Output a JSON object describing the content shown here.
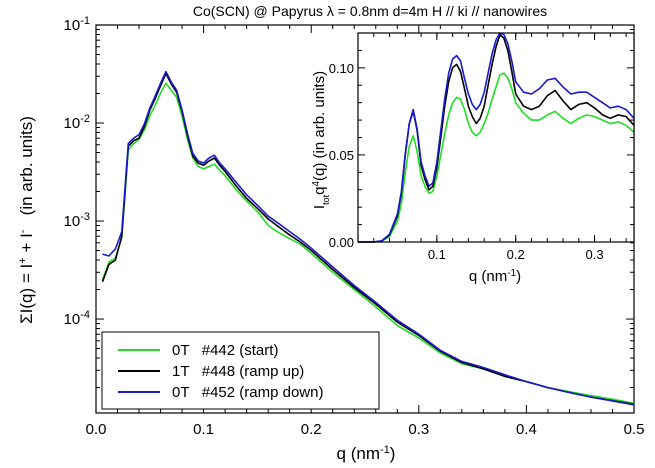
{
  "chart_data": [
    {
      "type": "line",
      "title": "Co(SCN) @ Papyrus λ = 0.8nm d=4m  H // ki // nanowires",
      "xlabel": "q (nm⁻¹)",
      "ylabel": "ΣI(q) = I⁺ + I⁻   (in arb. units)",
      "xlim": [
        0.0,
        0.5
      ],
      "ylim": [
        1.1e-05,
        0.1
      ],
      "yscale": "log",
      "grid": false,
      "legend_position": "bottom-left",
      "x_ticks": [
        "0.0",
        "0.1",
        "0.2",
        "0.3",
        "0.4",
        "0.5"
      ],
      "y_ticks": [
        {
          "base": "10",
          "exp": "-4"
        },
        {
          "base": "10",
          "exp": "-3"
        },
        {
          "base": "10",
          "exp": "-2"
        },
        {
          "base": "10",
          "exp": "-1"
        }
      ],
      "series": [
        {
          "name": "0T   #442 (start)",
          "color": "#22dd22",
          "x": [
            0.006,
            0.012,
            0.018,
            0.024,
            0.03,
            0.035,
            0.04,
            0.045,
            0.05,
            0.055,
            0.06,
            0.065,
            0.07,
            0.075,
            0.08,
            0.085,
            0.09,
            0.095,
            0.1,
            0.105,
            0.11,
            0.115,
            0.12,
            0.13,
            0.14,
            0.15,
            0.16,
            0.17,
            0.18,
            0.19,
            0.2,
            0.22,
            0.24,
            0.26,
            0.28,
            0.3,
            0.32,
            0.34,
            0.36,
            0.38,
            0.4,
            0.42,
            0.44,
            0.46,
            0.48,
            0.5
          ],
          "y": [
            0.00025,
            0.00038,
            0.00042,
            0.00068,
            0.0053,
            0.0062,
            0.0068,
            0.0085,
            0.0118,
            0.0152,
            0.0203,
            0.0255,
            0.0215,
            0.0182,
            0.0117,
            0.0068,
            0.0044,
            0.0036,
            0.0034,
            0.0036,
            0.0038,
            0.0033,
            0.0029,
            0.0021,
            0.0016,
            0.00125,
            0.0009,
            0.00076,
            0.00066,
            0.00058,
            0.00047,
            0.0003,
            0.0002,
            0.000133,
            8.6e-05,
            6.4e-05,
            4.5e-05,
            3.5e-05,
            3.1e-05,
            2.6e-05,
            2.3e-05,
            2e-05,
            1.82e-05,
            1.65e-05,
            1.52e-05,
            1.38e-05
          ]
        },
        {
          "name": "1T   #448 (ramp up)",
          "color": "#000000",
          "x": [
            0.006,
            0.012,
            0.018,
            0.024,
            0.03,
            0.035,
            0.04,
            0.045,
            0.05,
            0.055,
            0.06,
            0.065,
            0.07,
            0.075,
            0.08,
            0.085,
            0.09,
            0.095,
            0.1,
            0.105,
            0.11,
            0.115,
            0.12,
            0.13,
            0.14,
            0.15,
            0.16,
            0.17,
            0.18,
            0.19,
            0.2,
            0.22,
            0.24,
            0.26,
            0.28,
            0.3,
            0.32,
            0.34,
            0.36,
            0.38,
            0.4,
            0.42,
            0.44,
            0.46,
            0.48,
            0.5
          ],
          "y": [
            0.00024,
            0.00036,
            0.0004,
            0.0007,
            0.0058,
            0.0066,
            0.007,
            0.0092,
            0.0135,
            0.0178,
            0.024,
            0.032,
            0.025,
            0.0205,
            0.013,
            0.0074,
            0.0046,
            0.0039,
            0.0037,
            0.0041,
            0.0044,
            0.0037,
            0.0032,
            0.0023,
            0.0017,
            0.00135,
            0.00105,
            0.00087,
            0.00072,
            0.00061,
            0.0005,
            0.00032,
            0.00021,
            0.000142,
            9.3e-05,
            6.8e-05,
            4.7e-05,
            3.6e-05,
            3.1e-05,
            2.6e-05,
            2.3e-05,
            2e-05,
            1.78e-05,
            1.6e-05,
            1.47e-05,
            1.35e-05
          ]
        },
        {
          "name": "0T   #452 (ramp down)",
          "color": "#1a1acc",
          "x": [
            0.006,
            0.012,
            0.018,
            0.024,
            0.03,
            0.035,
            0.04,
            0.045,
            0.05,
            0.055,
            0.06,
            0.065,
            0.07,
            0.075,
            0.08,
            0.085,
            0.09,
            0.095,
            0.1,
            0.105,
            0.11,
            0.115,
            0.12,
            0.13,
            0.14,
            0.15,
            0.16,
            0.17,
            0.18,
            0.19,
            0.2,
            0.22,
            0.24,
            0.26,
            0.28,
            0.3,
            0.32,
            0.34,
            0.36,
            0.38,
            0.4,
            0.42,
            0.44,
            0.46,
            0.48,
            0.5
          ],
          "y": [
            0.00046,
            0.00044,
            0.00052,
            0.00078,
            0.0062,
            0.007,
            0.0076,
            0.0098,
            0.0142,
            0.0188,
            0.0255,
            0.0335,
            0.0262,
            0.0215,
            0.0135,
            0.0078,
            0.0049,
            0.0041,
            0.0039,
            0.0044,
            0.0047,
            0.0039,
            0.0034,
            0.0025,
            0.00185,
            0.00145,
            0.00112,
            0.00094,
            0.00078,
            0.00065,
            0.00053,
            0.00034,
            0.00022,
            0.000148,
            9.7e-05,
            7e-05,
            4.8e-05,
            3.7e-05,
            3.2e-05,
            2.7e-05,
            2.3e-05,
            2e-05,
            1.78e-05,
            1.6e-05,
            1.46e-05,
            1.33e-05
          ]
        }
      ]
    },
    {
      "type": "line",
      "title": "",
      "xlabel": "q (nm⁻¹)",
      "ylabel": "I_tot q⁴(q) (in arb. units)",
      "xlim": [
        0.0,
        0.35
      ],
      "ylim": [
        0.0,
        0.12
      ],
      "yscale": "linear",
      "grid": false,
      "x_ticks": [
        "0.1",
        "0.2",
        "0.3"
      ],
      "y_ticks": [
        "0.00",
        "0.05",
        "0.10"
      ],
      "series": [
        {
          "color": "#22dd22",
          "x": [
            0.0,
            0.02,
            0.03,
            0.04,
            0.05,
            0.055,
            0.06,
            0.065,
            0.07,
            0.075,
            0.08,
            0.085,
            0.09,
            0.095,
            0.1,
            0.105,
            0.11,
            0.115,
            0.12,
            0.125,
            0.13,
            0.135,
            0.14,
            0.145,
            0.15,
            0.155,
            0.16,
            0.165,
            0.17,
            0.175,
            0.18,
            0.185,
            0.19,
            0.195,
            0.2,
            0.21,
            0.22,
            0.23,
            0.24,
            0.25,
            0.26,
            0.27,
            0.28,
            0.29,
            0.3,
            0.31,
            0.32,
            0.33,
            0.34,
            0.35
          ],
          "y": [
            0.0,
            0.0,
            0.0005,
            0.003,
            0.012,
            0.022,
            0.04,
            0.055,
            0.061,
            0.052,
            0.038,
            0.032,
            0.028,
            0.029,
            0.038,
            0.05,
            0.062,
            0.073,
            0.08,
            0.083,
            0.082,
            0.076,
            0.068,
            0.063,
            0.061,
            0.063,
            0.068,
            0.074,
            0.082,
            0.089,
            0.096,
            0.097,
            0.094,
            0.088,
            0.08,
            0.074,
            0.07,
            0.07,
            0.073,
            0.075,
            0.071,
            0.068,
            0.071,
            0.073,
            0.072,
            0.07,
            0.068,
            0.069,
            0.067,
            0.063
          ]
        },
        {
          "color": "#000000",
          "x": [
            0.0,
            0.02,
            0.03,
            0.04,
            0.05,
            0.055,
            0.06,
            0.065,
            0.07,
            0.075,
            0.08,
            0.085,
            0.09,
            0.095,
            0.1,
            0.105,
            0.11,
            0.115,
            0.12,
            0.125,
            0.13,
            0.135,
            0.14,
            0.145,
            0.15,
            0.155,
            0.16,
            0.165,
            0.17,
            0.175,
            0.18,
            0.185,
            0.19,
            0.195,
            0.2,
            0.21,
            0.22,
            0.23,
            0.24,
            0.25,
            0.26,
            0.27,
            0.28,
            0.29,
            0.3,
            0.31,
            0.32,
            0.33,
            0.34,
            0.35
          ],
          "y": [
            0.0,
            0.0,
            0.0006,
            0.004,
            0.015,
            0.028,
            0.05,
            0.068,
            0.075,
            0.064,
            0.044,
            0.036,
            0.03,
            0.032,
            0.043,
            0.06,
            0.078,
            0.092,
            0.1,
            0.102,
            0.098,
            0.088,
            0.078,
            0.072,
            0.068,
            0.071,
            0.078,
            0.09,
            0.102,
            0.112,
            0.119,
            0.117,
            0.11,
            0.098,
            0.085,
            0.078,
            0.076,
            0.078,
            0.084,
            0.087,
            0.081,
            0.076,
            0.079,
            0.08,
            0.077,
            0.073,
            0.071,
            0.073,
            0.072,
            0.067
          ]
        },
        {
          "color": "#1a1acc",
          "x": [
            0.0,
            0.02,
            0.03,
            0.04,
            0.05,
            0.055,
            0.06,
            0.065,
            0.07,
            0.075,
            0.08,
            0.085,
            0.09,
            0.095,
            0.1,
            0.105,
            0.11,
            0.115,
            0.12,
            0.125,
            0.13,
            0.135,
            0.14,
            0.145,
            0.15,
            0.155,
            0.16,
            0.165,
            0.17,
            0.175,
            0.18,
            0.185,
            0.19,
            0.195,
            0.2,
            0.21,
            0.22,
            0.23,
            0.24,
            0.25,
            0.26,
            0.27,
            0.28,
            0.29,
            0.3,
            0.31,
            0.32,
            0.33,
            0.34,
            0.35
          ],
          "y": [
            0.0,
            0.0,
            0.0007,
            0.0045,
            0.016,
            0.029,
            0.051,
            0.068,
            0.076,
            0.065,
            0.046,
            0.038,
            0.032,
            0.034,
            0.046,
            0.064,
            0.082,
            0.097,
            0.105,
            0.107,
            0.104,
            0.094,
            0.085,
            0.079,
            0.076,
            0.079,
            0.086,
            0.097,
            0.108,
            0.116,
            0.12,
            0.119,
            0.114,
            0.104,
            0.092,
            0.086,
            0.085,
            0.088,
            0.093,
            0.094,
            0.089,
            0.085,
            0.086,
            0.086,
            0.083,
            0.08,
            0.077,
            0.078,
            0.076,
            0.071
          ]
        }
      ]
    }
  ]
}
